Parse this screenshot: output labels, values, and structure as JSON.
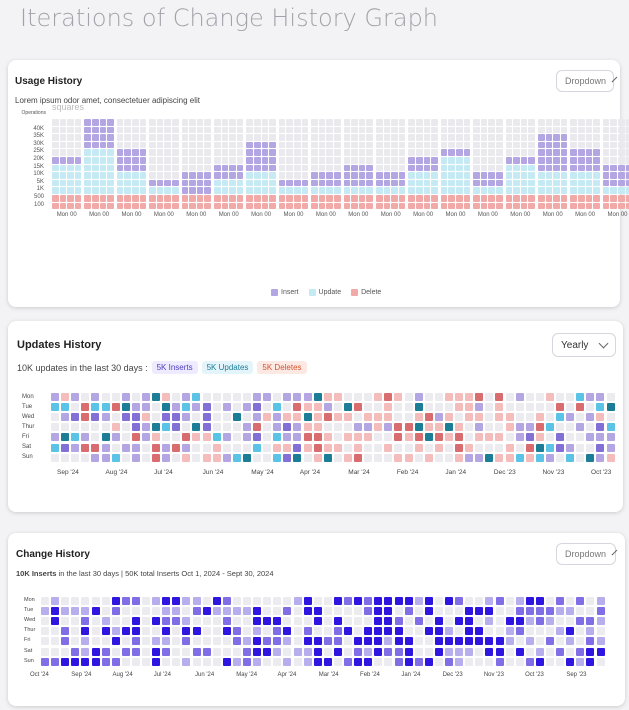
{
  "page_title": "Iterations of Change History Graph",
  "usage": {
    "title": "Usage History",
    "dropdown": "Dropdown",
    "subtitle": "Lorem ipsum odor amet, consectetuer adipiscing elit",
    "ghost_text": "squares",
    "y_axis_label": "Operations",
    "y_ticks": [
      "40K",
      "35K",
      "30K",
      "25K",
      "20K",
      "15K",
      "10K",
      "5K",
      "1K",
      "500",
      "100"
    ],
    "x_label": "Mon 00",
    "legend": [
      "Insert",
      "Update",
      "Delete"
    ],
    "chart_data": {
      "type": "bar",
      "categories": [
        "Mon 00",
        "Mon 00",
        "Mon 00",
        "Mon 00",
        "Mon 00",
        "Mon 00",
        "Mon 00",
        "Mon 00",
        "Mon 00",
        "Mon 00",
        "Mon 00",
        "Mon 00",
        "Mon 00",
        "Mon 00",
        "Mon 00",
        "Mon 00",
        "Mon 00",
        "Mon 00"
      ],
      "series": [
        {
          "name": "Delete",
          "values": [
            2,
            2,
            2,
            2,
            2,
            2,
            2,
            2,
            2,
            2,
            2,
            2,
            2,
            2,
            2,
            2,
            2,
            2
          ]
        },
        {
          "name": "Update",
          "values": [
            4,
            6,
            3,
            1,
            0,
            2,
            3,
            1,
            1,
            1,
            1,
            3,
            5,
            1,
            4,
            3,
            3,
            1
          ]
        },
        {
          "name": "Insert",
          "values": [
            1,
            4,
            3,
            1,
            3,
            2,
            4,
            1,
            2,
            3,
            2,
            2,
            1,
            2,
            1,
            5,
            3,
            3
          ]
        }
      ],
      "ylim": [
        0,
        12
      ]
    },
    "colors": {
      "insert": "#b3a6e3",
      "update": "#c6eaf4",
      "delete": "#f2aaa8",
      "empty": "#e9e9ee"
    }
  },
  "updates": {
    "title": "Updates History",
    "dropdown": "Yearly",
    "summary": "10K updates in the last 30 days :",
    "badges": [
      "5K Inserts",
      "5K Updates",
      "5K Deletes"
    ],
    "days": [
      "Mon",
      "Tue",
      "Wed",
      "Thur",
      "Fri",
      "Sat",
      "Sun"
    ],
    "months": [
      "Sep '24",
      "Aug '24",
      "Jul '24",
      "Jun '24",
      "May '24",
      "Apr '24",
      "Mar '24",
      "Feb '24",
      "Jan '24",
      "Dec '23",
      "Nov '23",
      "Oct '23"
    ],
    "palette": [
      "#ececf0",
      "#b3a6e3",
      "#8270d6",
      "#5bc4e6",
      "#1b7d96",
      "#f5bcbc",
      "#d86c6e"
    ]
  },
  "change": {
    "title": "Change History",
    "dropdown": "Dropdown",
    "summary_bold": "10K Inserts",
    "summary_rest": " in the last 30 days | 50K total Inserts Oct 1, 2024 - Sept 30, 2024",
    "days": [
      "Mon",
      "Tue",
      "Wed",
      "Thur",
      "Fri",
      "Sat",
      "Sun"
    ],
    "months": [
      "Oct '24",
      "Sep '24",
      "Aug '24",
      "Jul '24",
      "Jun '24",
      "May '24",
      "Apr '24",
      "Mar '24",
      "Feb '24",
      "Jan '24",
      "Dec '23",
      "Nov '23",
      "Oct '23",
      "Sep '23"
    ],
    "palette": [
      "#ececf0",
      "#b6aeed",
      "#7f6ee6",
      "#2e16e0"
    ]
  }
}
